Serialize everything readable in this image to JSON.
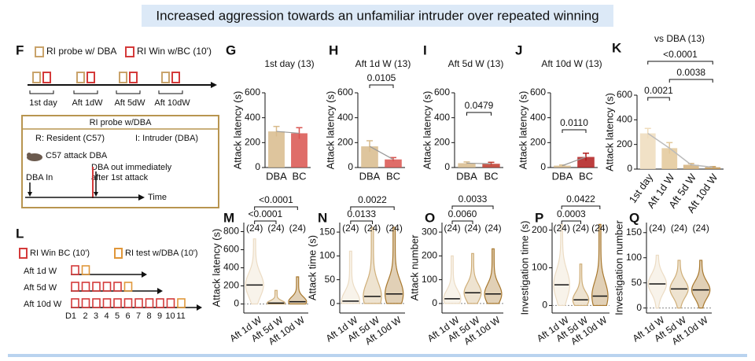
{
  "title": "Increased aggression towards an unfamiliar intruder over repeated winning",
  "panel_labels": [
    "F",
    "G",
    "H",
    "I",
    "J",
    "K",
    "L",
    "M",
    "N",
    "O",
    "P",
    "Q"
  ],
  "schematic_f": {
    "legend": [
      "RI probe w/ DBA",
      "RI Win w/BC (10')"
    ],
    "timepoints": [
      "1st day",
      "Aft 1dW",
      "Aft 5dW",
      "Aft 10dW"
    ],
    "box_title": "RI probe w/DBA",
    "resident": "R: Resident (C57)",
    "intruder": "I: Intruder (DBA)",
    "attack": "C57 attack DBA",
    "out": [
      "DBA out immediately",
      "after 1st attack"
    ],
    "in": "DBA In",
    "time": "Time"
  },
  "schematic_l": {
    "legend": [
      "RI Win BC (10')",
      "RI test w/DBA (10')"
    ],
    "rows": [
      "Aft 1d W",
      "Aft 5d W",
      "Aft 10d W"
    ],
    "days": [
      "D1",
      "2",
      "3",
      "4",
      "5",
      "6",
      "7",
      "8",
      "9",
      "10",
      "11"
    ]
  },
  "chart_data": [
    {
      "type": "bar",
      "title": "1st day (13)",
      "ylabel": "Attack latency (s)",
      "categories": [
        "DBA",
        "BC"
      ],
      "values": [
        290,
        275
      ],
      "errors": [
        40,
        45
      ],
      "colors": [
        "#d8bb8c",
        "#d9534f"
      ],
      "ylim": [
        0,
        600
      ],
      "yticks": [
        0,
        200,
        400,
        600
      ],
      "annotations": []
    },
    {
      "type": "bar",
      "title": "Aft 1d W (13)",
      "ylabel": "Attack latency (s)",
      "categories": [
        "DBA",
        "BC"
      ],
      "values": [
        170,
        65
      ],
      "errors": [
        45,
        15
      ],
      "colors": [
        "#d8bb8c",
        "#d9534f"
      ],
      "ylim": [
        0,
        600
      ],
      "yticks": [
        0,
        200,
        400,
        600
      ],
      "annotations": [
        "0.0105"
      ]
    },
    {
      "type": "bar",
      "title": "Aft 5d W (13)",
      "ylabel": "Attack latency (s)",
      "categories": [
        "DBA",
        "BC"
      ],
      "values": [
        35,
        30
      ],
      "errors": [
        10,
        12
      ],
      "colors": [
        "#d8bb8c",
        "#c0392b"
      ],
      "ylim": [
        0,
        600
      ],
      "yticks": [
        0,
        200,
        400,
        600
      ],
      "annotations": [
        "0.0479"
      ]
    },
    {
      "type": "bar",
      "title": "Aft 10d W (13)",
      "ylabel": "Attack latency (s)",
      "categories": [
        "DBA",
        "BC"
      ],
      "values": [
        15,
        85
      ],
      "errors": [
        5,
        30
      ],
      "colors": [
        "#d8bb8c",
        "#b01c1c"
      ],
      "ylim": [
        0,
        600
      ],
      "yticks": [
        0,
        200,
        400,
        600
      ],
      "annotations": [
        "0.0110"
      ]
    },
    {
      "type": "bar",
      "title": "vs DBA (13)",
      "ylabel": "Attack latency (s)",
      "categories": [
        "1st day",
        "Aft 1d W",
        "Aft 5d W",
        "Aft 10d W"
      ],
      "values": [
        290,
        170,
        35,
        15
      ],
      "errors": [
        40,
        45,
        10,
        5
      ],
      "colors": [
        "#efdcbc",
        "#e3c899",
        "#d4b07a",
        "#c49a5a"
      ],
      "ylim": [
        0,
        600
      ],
      "yticks": [
        0,
        200,
        400,
        600
      ],
      "annotations": [
        "<0.0001",
        "0.0038",
        "0.0021"
      ]
    },
    {
      "type": "violin",
      "ylabel": "Attack latency (s)",
      "categories": [
        "Aft 1d W",
        "Aft 5d W",
        "Aft 10d W"
      ],
      "n_labels": [
        "(24)",
        "(24)",
        "(24)"
      ],
      "values": [
        210,
        10,
        25
      ],
      "ranges": [
        [
          0,
          720
        ],
        [
          0,
          150
        ],
        [
          0,
          300
        ]
      ],
      "colors": [
        "#ecdcc4",
        "#cfae78",
        "#a8782e"
      ],
      "ylim": [
        -100,
        900
      ],
      "yticks": [
        0,
        200,
        400,
        600,
        800
      ],
      "annotations": [
        "<0.0001",
        "<0.0001"
      ]
    },
    {
      "type": "violin",
      "ylabel": "Attack time (s)",
      "categories": [
        "Aft 1d W",
        "Aft 5d W",
        "Aft 10d W"
      ],
      "n_labels": [
        "(24)",
        "(24)",
        "(24)"
      ],
      "values": [
        5,
        15,
        20
      ],
      "ranges": [
        [
          0,
          110
        ],
        [
          0,
          160
        ],
        [
          0,
          160
        ]
      ],
      "colors": [
        "#ecdcc4",
        "#cfae78",
        "#a8782e"
      ],
      "ylim": [
        -20,
        170
      ],
      "yticks": [
        0,
        50,
        100,
        150
      ],
      "annotations": [
        "0.0133",
        "0.0022"
      ]
    },
    {
      "type": "violin",
      "ylabel": "Attack number",
      "categories": [
        "Aft 1d W",
        "Aft 5d W",
        "Aft 10d W"
      ],
      "n_labels": [
        "(24)",
        "(24)",
        "(24)"
      ],
      "values": [
        20,
        45,
        40
      ],
      "ranges": [
        [
          0,
          200
        ],
        [
          0,
          210
        ],
        [
          0,
          230
        ]
      ],
      "colors": [
        "#ecdcc4",
        "#cfae78",
        "#a8782e"
      ],
      "ylim": [
        -40,
        340
      ],
      "yticks": [
        0,
        100,
        200,
        300
      ],
      "annotations": [
        "0.0060",
        "0.0033"
      ]
    },
    {
      "type": "violin",
      "ylabel": "Investigation time (s)",
      "categories": [
        "Aft 1d W",
        "Aft 5d W",
        "Aft 10d W"
      ],
      "n_labels": [
        "(24)",
        "(24)",
        "(24)"
      ],
      "values": [
        55,
        15,
        25
      ],
      "ranges": [
        [
          0,
          215
        ],
        [
          0,
          110
        ],
        [
          0,
          215
        ]
      ],
      "colors": [
        "#ecdcc4",
        "#cfae78",
        "#a8782e"
      ],
      "ylim": [
        -20,
        220
      ],
      "yticks": [
        0,
        100,
        200
      ],
      "annotations": [
        "0.0003",
        "0.0422"
      ]
    },
    {
      "type": "violin",
      "ylabel": "Investigation number",
      "categories": [
        "Aft 1d W",
        "Aft 5d W",
        "Aft 10d W"
      ],
      "n_labels": [
        "(24)",
        "(24)",
        "(24)"
      ],
      "values": [
        48,
        38,
        36
      ],
      "ranges": [
        [
          0,
          105
        ],
        [
          0,
          95
        ],
        [
          0,
          95
        ]
      ],
      "colors": [
        "#ecdcc4",
        "#cfae78",
        "#a8782e"
      ],
      "ylim": [
        -10,
        170
      ],
      "yticks": [
        0,
        50,
        100,
        150
      ],
      "annotations": []
    }
  ]
}
